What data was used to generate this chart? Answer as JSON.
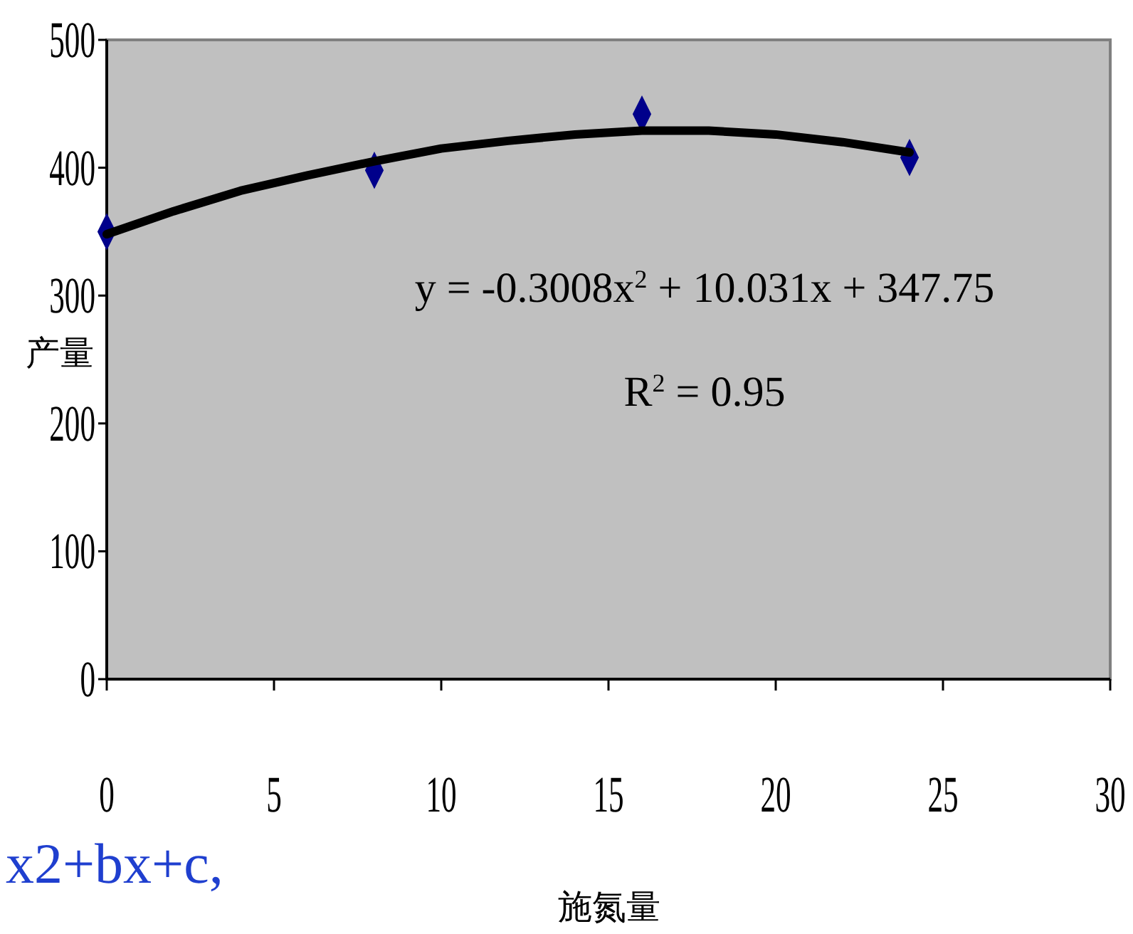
{
  "chart_data": {
    "type": "scatter",
    "xlabel": "施氮量",
    "ylabel": "产量",
    "xlim": [
      0,
      30
    ],
    "ylim": [
      0,
      500
    ],
    "xticks": [
      0,
      5,
      10,
      15,
      20,
      25,
      30
    ],
    "yticks": [
      0,
      100,
      200,
      300,
      400,
      500
    ],
    "grid": false,
    "marker": "diamond",
    "annotations": [
      "y = -0.3008x$^{2}$ + 10.031x + 347.75",
      "R$^{2}$ = 0.95",
      "x2+bx+c,"
    ],
    "series": [
      {
        "color": "#00008b",
        "x": [
          0,
          8,
          16,
          24
        ],
        "values": [
          350,
          398,
          442,
          408
        ]
      },
      {
        "type": "line",
        "color": "#000000",
        "marker": "none",
        "x": [
          0,
          2,
          4,
          6,
          8,
          10,
          12,
          14,
          16,
          18,
          20,
          22,
          24
        ],
        "values": [
          348,
          366,
          382,
          394,
          405,
          415,
          421,
          426,
          429,
          429,
          426,
          420,
          412
        ]
      }
    ]
  }
}
